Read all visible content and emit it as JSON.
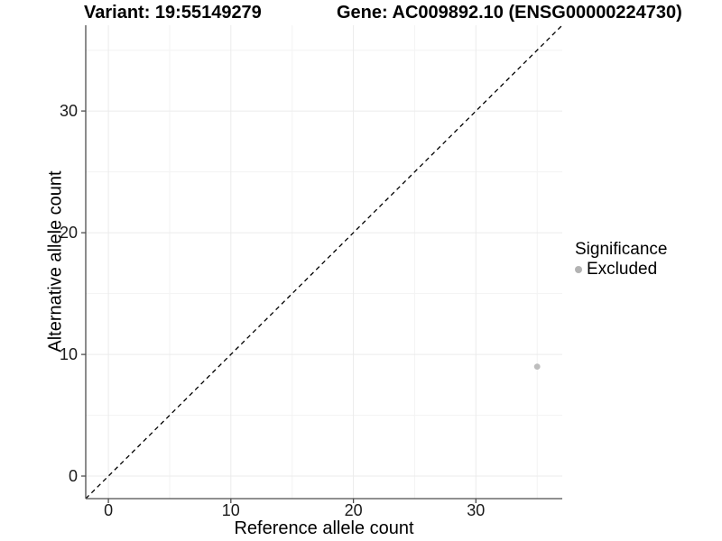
{
  "header": {
    "title_left": "Variant: 19:55149279",
    "title_right": "Gene: AC009892.10 (ENSG00000224730)"
  },
  "chart_data": {
    "type": "scatter",
    "title_left": "Variant: 19:55149279",
    "title_right": "Gene: AC009892.10 (ENSG00000224730)",
    "xlabel": "Reference allele count",
    "ylabel": "Alternative allele count",
    "xlim": [
      -1.85,
      37.05
    ],
    "ylim": [
      -1.85,
      37.05
    ],
    "xticks": [
      0,
      10,
      20,
      30
    ],
    "yticks": [
      0,
      10,
      20,
      30
    ],
    "minor_ticks": [
      5,
      15,
      25,
      35
    ],
    "grid": "major+minor",
    "series": [
      {
        "name": "Excluded",
        "color": "#bdbdbd",
        "points": [
          {
            "x": 35,
            "y": 9
          }
        ]
      }
    ],
    "reference_line": {
      "type": "identity",
      "style": "dashed",
      "color": "#000000",
      "from": [
        -1.85,
        -1.85
      ],
      "to": [
        37.05,
        37.05
      ]
    },
    "legend": {
      "title": "Significance",
      "position": "right",
      "entries": [
        {
          "label": "Excluded",
          "color": "#b3b3b3",
          "marker": "circle"
        }
      ]
    },
    "colors": {
      "axis": "#4d4d4d",
      "grid_major": "#ebebeb",
      "grid_minor": "#f3f3f3",
      "tick_text": "#1a1a1a"
    }
  }
}
